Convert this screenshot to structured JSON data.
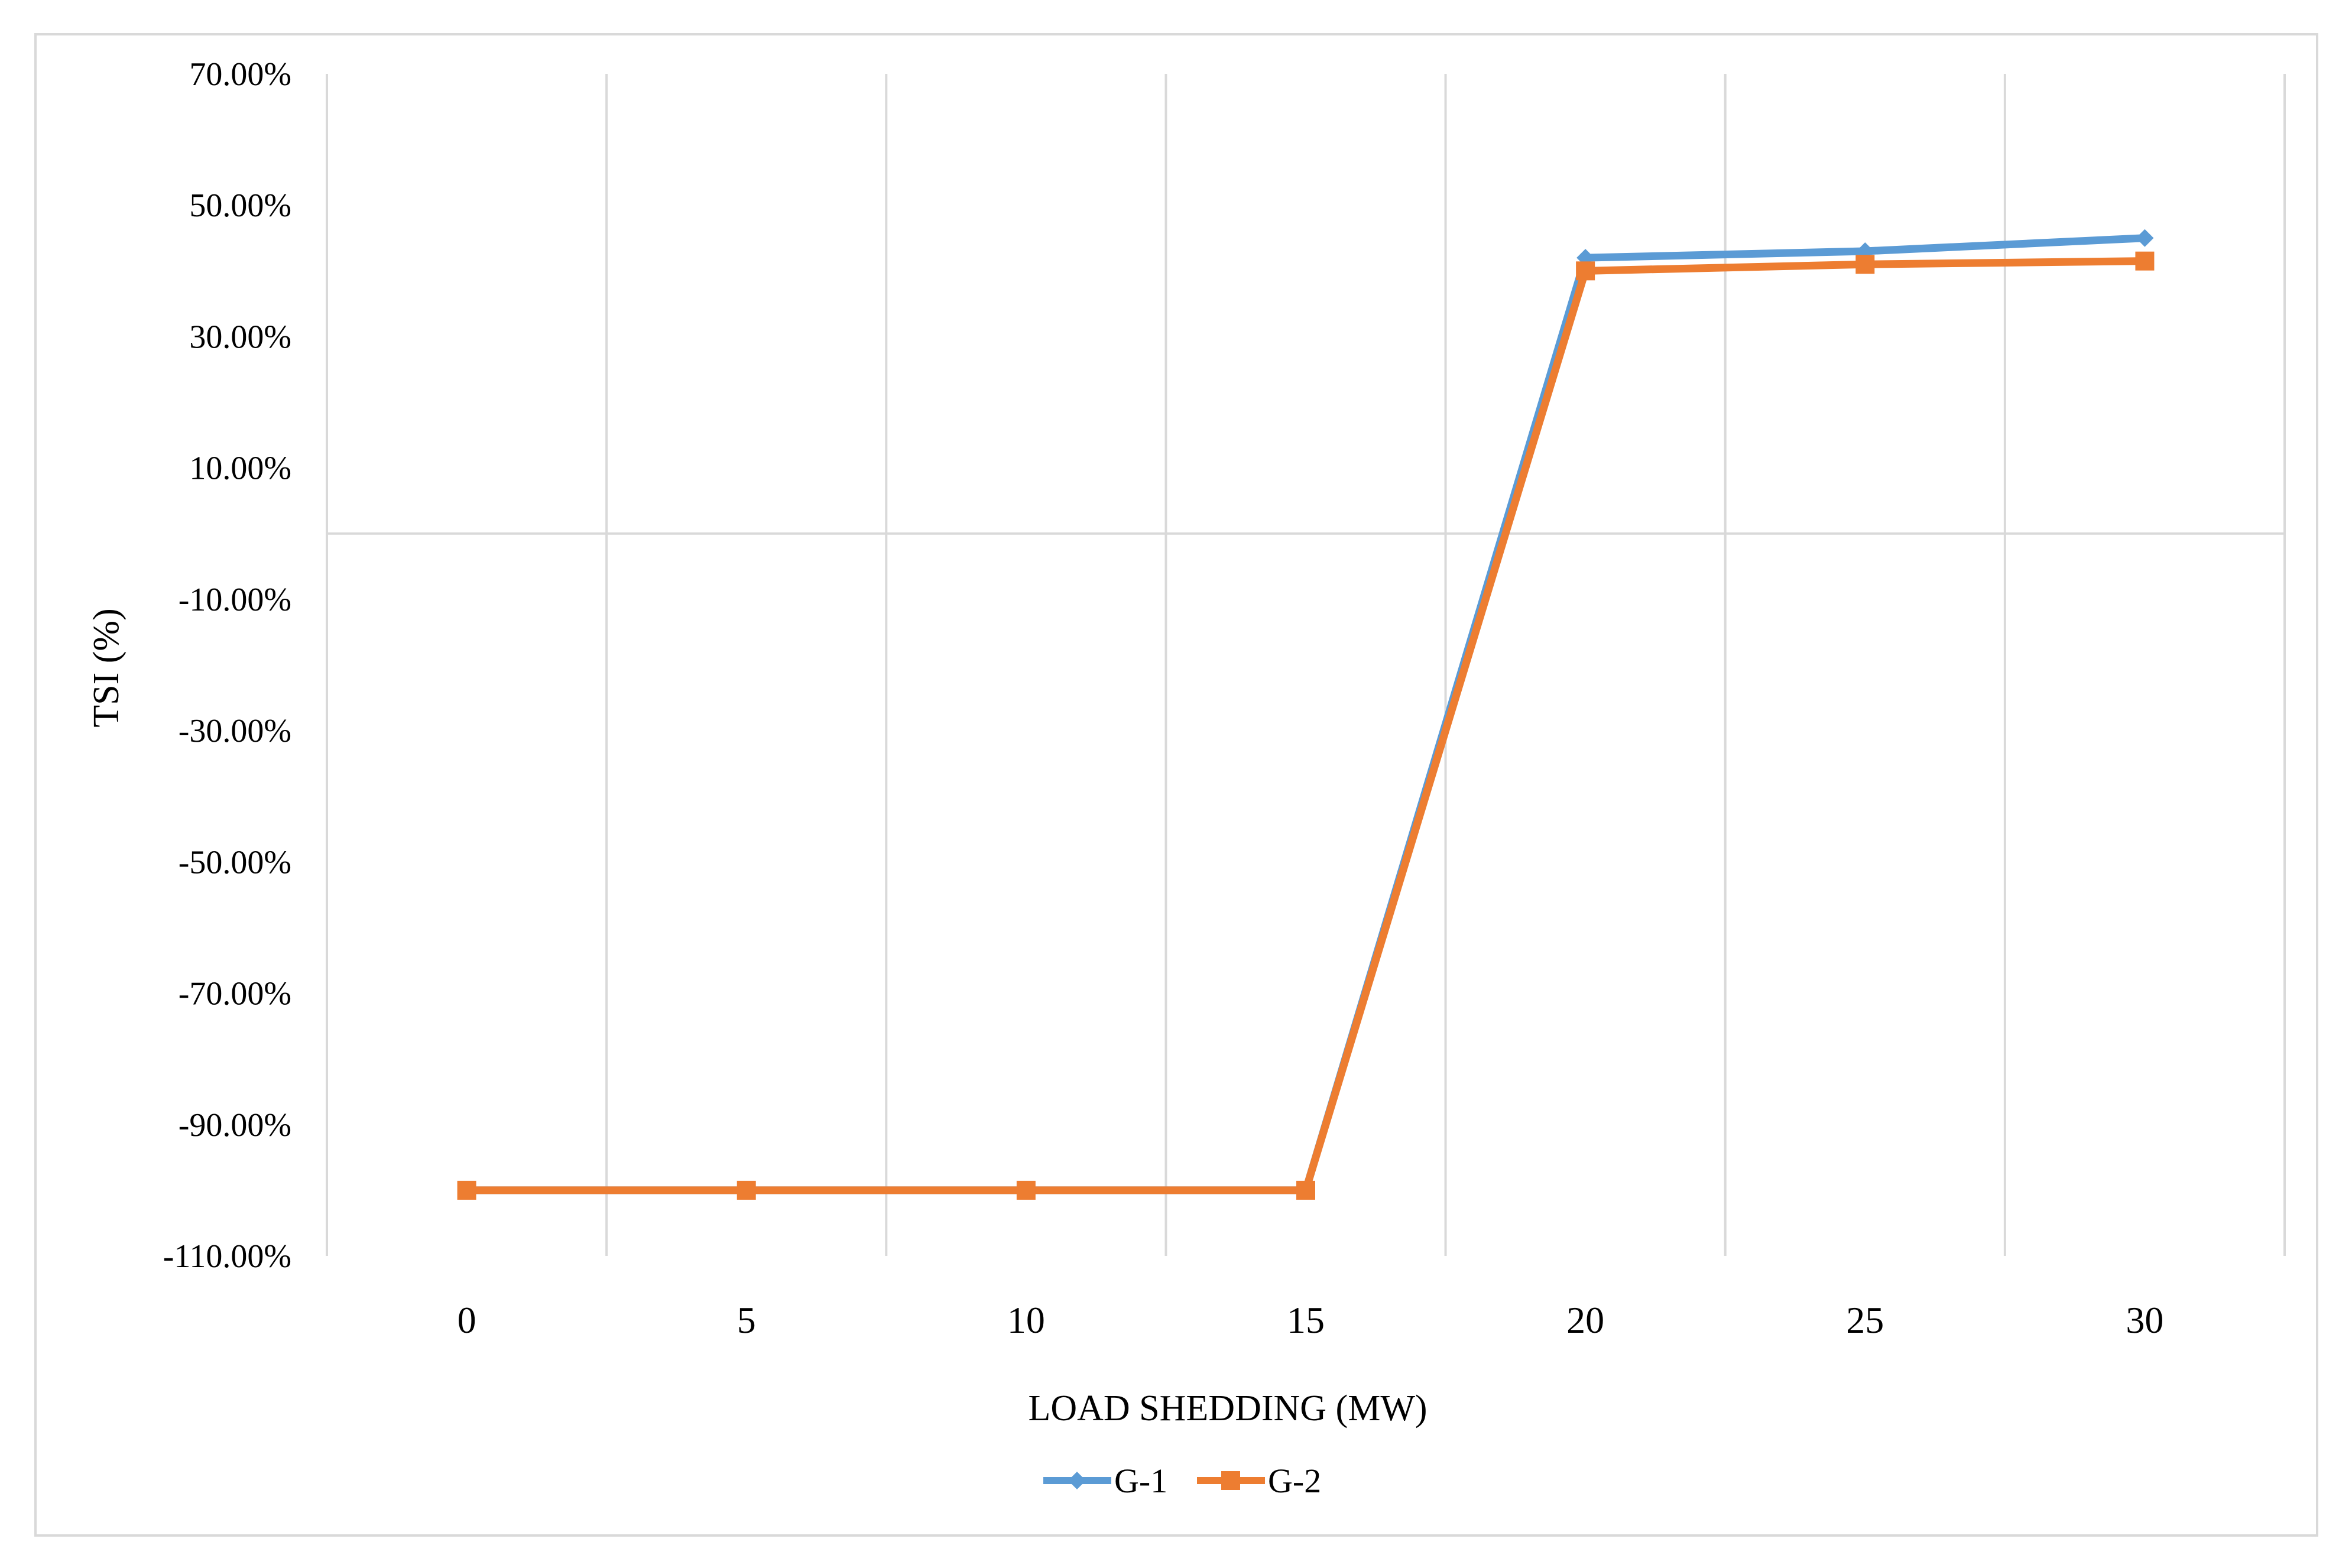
{
  "chart_data": {
    "type": "line",
    "title": "",
    "xlabel": "LOAD SHEDDING (MW)",
    "ylabel": "TSI (%)",
    "x": [
      0,
      5,
      10,
      15,
      20,
      25,
      30
    ],
    "x_tick_labels": [
      "0",
      "5",
      "10",
      "15",
      "20",
      "25",
      "30"
    ],
    "ylim": [
      -110,
      70
    ],
    "y_tick_values": [
      70,
      50,
      30,
      10,
      -10,
      -30,
      -50,
      -70,
      -90,
      -110
    ],
    "y_tick_labels": [
      "70.00%",
      "50.00%",
      "30.00%",
      "10.00%",
      "-10.00%",
      "-30.00%",
      "-50.00%",
      "-70.00%",
      "-90.00%",
      "-110.00%"
    ],
    "grid": true,
    "legend_position": "bottom",
    "series": [
      {
        "name": "G-1",
        "color": "#5B9BD5",
        "marker": "diamond",
        "values": [
          -100,
          -100,
          -100,
          -100,
          42,
          43,
          45
        ]
      },
      {
        "name": "G-2",
        "color": "#ED7D31",
        "marker": "square",
        "values": [
          -100,
          -100,
          -100,
          -100,
          40,
          41,
          41.5
        ]
      }
    ]
  }
}
